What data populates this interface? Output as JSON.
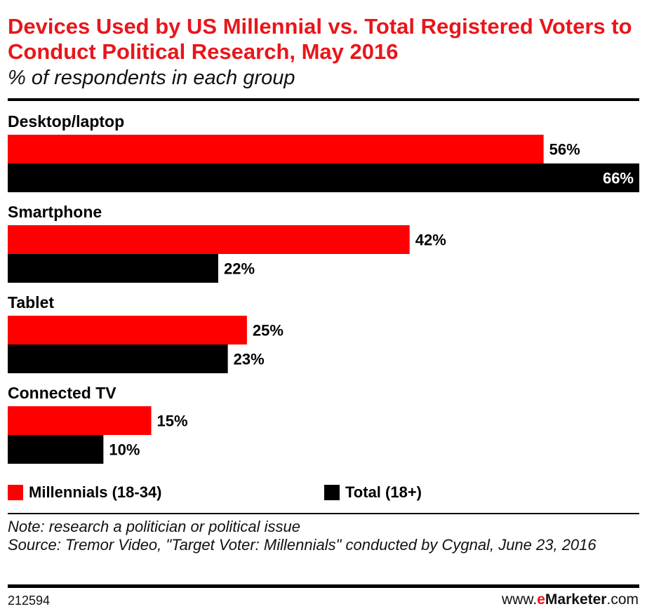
{
  "header": {
    "title": "Devices Used by US Millennial vs. Total Registered Voters to Conduct Political Research, May 2016",
    "subtitle": "% of respondents in each group"
  },
  "chart_data": {
    "type": "bar",
    "orientation": "horizontal",
    "categories": [
      "Desktop/laptop",
      "Smartphone",
      "Tablet",
      "Connected TV"
    ],
    "series": [
      {
        "name": "Millennials (18-34)",
        "color": "#ff0000",
        "values": [
          56,
          42,
          25,
          15
        ]
      },
      {
        "name": "Total (18+)",
        "color": "#000000",
        "values": [
          66,
          22,
          23,
          10
        ]
      }
    ],
    "value_labels": [
      [
        "56%",
        "42%",
        "25%",
        "15%"
      ],
      [
        "66%",
        "22%",
        "23%",
        "10%"
      ]
    ],
    "xlim": [
      0,
      66
    ],
    "grid": false,
    "legend_position": "bottom"
  },
  "legend": {
    "millennials_label": "Millennials (18-34)",
    "total_label": "Total (18+)",
    "millennials_color": "#ff0000",
    "total_color": "#000000"
  },
  "footer": {
    "note": "Note: research a politician or political issue",
    "source": "Source: Tremor Video, \"Target Voter: Millennials\" conducted by Cygnal, June 23, 2016",
    "chart_id": "212594",
    "brand_prefix": "www.",
    "brand_e": "e",
    "brand_name": "Marketer",
    "brand_suffix": ".com"
  }
}
